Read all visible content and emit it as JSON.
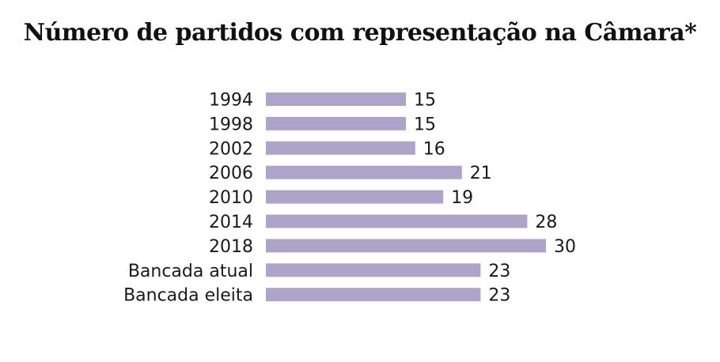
{
  "chart_data": {
    "type": "bar",
    "orientation": "horizontal",
    "title": "Número de partidos com representação na Câmara*",
    "categories": [
      "1994",
      "1998",
      "2002",
      "2006",
      "2010",
      "2014",
      "2018",
      "Bancada atual",
      "Bancada eleita"
    ],
    "values": [
      15,
      15,
      16,
      21,
      19,
      28,
      30,
      23,
      23
    ],
    "xlim": [
      0,
      30
    ],
    "grid": false,
    "legend": "none",
    "bar_color": "#ada4c9"
  }
}
